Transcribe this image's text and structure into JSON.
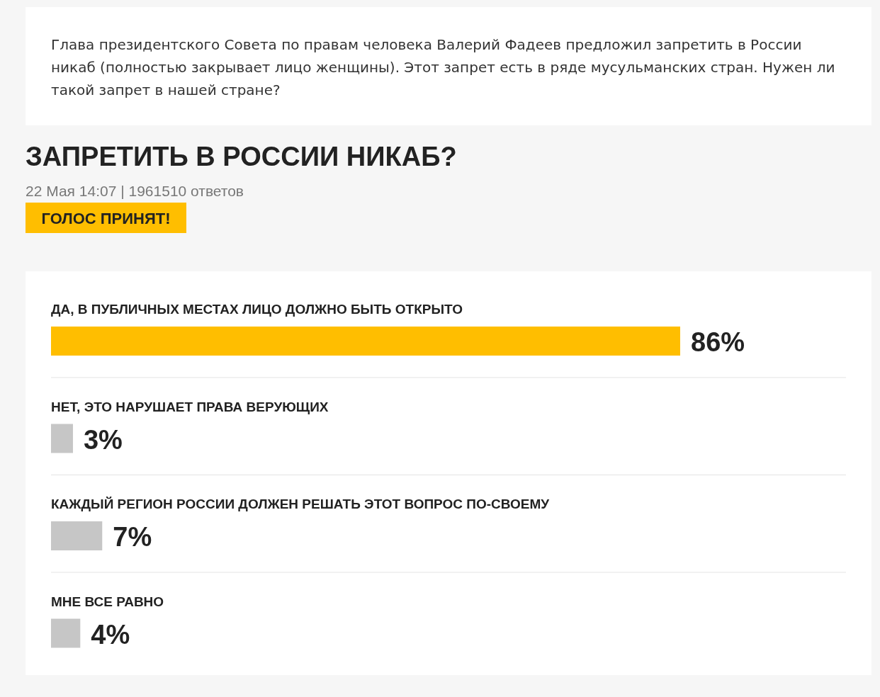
{
  "chart_data": {
    "type": "bar",
    "orientation": "horizontal",
    "title": "ЗАПРЕТИТЬ В РОССИИ НИКАБ?",
    "subtitle": "22 Мая 14:07 | 1961510 ответов",
    "annotations": [
      "Глава президентского Совета по правам человека Валерий Фадеев предложил запретить в России никаб (полностью закрывает лицо женщины). Этот запрет есть в ряде мусульманских стран. Нужен ли такой запрет в нашей стране?",
      "ГОЛОС ПРИНЯТ!"
    ],
    "categories": [
      "ДА, В ПУБЛИЧНЫХ МЕСТАХ ЛИЦО ДОЛЖНО БЫТЬ ОТКРЫТО",
      "НЕТ, ЭТО НАРУШАЕТ ПРАВА ВЕРУЮЩИХ",
      "КАЖДЫЙ РЕГИОН РОССИИ ДОЛЖЕН РЕШАТЬ ЭТОТ ВОПРОС ПО-СВОЕМУ",
      "МНЕ ВСЕ РАВНО"
    ],
    "values": [
      86,
      3,
      7,
      4
    ],
    "colors": [
      "#ffbe00",
      "#c6c6c6",
      "#c6c6c6",
      "#c6c6c6"
    ],
    "value_labels": [
      "86%",
      "3%",
      "7%",
      "4%"
    ]
  }
}
